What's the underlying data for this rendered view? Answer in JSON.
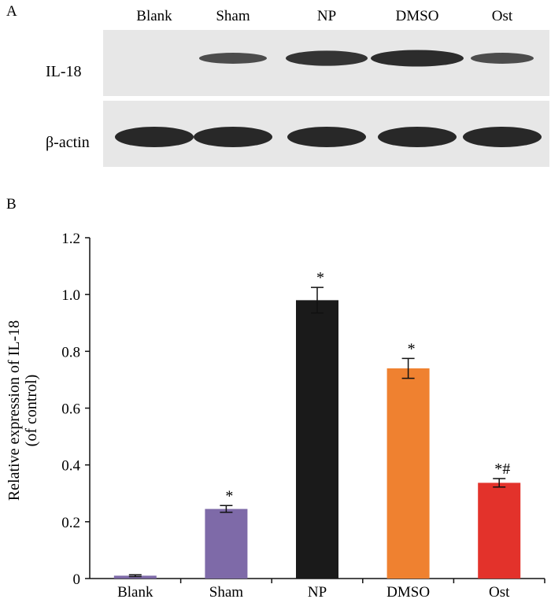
{
  "panel_a": {
    "label": "A",
    "lanes": [
      "Blank",
      "Sham",
      "NP",
      "DMSO",
      "Ost"
    ],
    "rows": [
      {
        "label": "IL-18",
        "intensity": [
          0.0,
          0.55,
          0.85,
          0.95,
          0.55
        ]
      },
      {
        "label": "β-actin",
        "intensity": [
          1.0,
          1.0,
          1.0,
          1.0,
          1.0
        ]
      }
    ]
  },
  "panel_b": {
    "label": "B"
  },
  "chart_data": {
    "type": "bar",
    "categories": [
      "Blank",
      "Sham",
      "NP",
      "DMSO",
      "Ost"
    ],
    "values": [
      0.01,
      0.245,
      0.98,
      0.74,
      0.337
    ],
    "errors": [
      0.003,
      0.012,
      0.045,
      0.035,
      0.015
    ],
    "annotations": [
      "",
      "*",
      "*",
      "*",
      "*#"
    ],
    "colors": [
      "#7e6aa8",
      "#7e6aa8",
      "#1a1a1a",
      "#ef8130",
      "#e3322b"
    ],
    "ylabel": "Relative expression of IL-18",
    "ylabel2": "(of control)",
    "ylim": [
      0,
      1.2
    ],
    "yticks": [
      "0",
      "0.2",
      "0.4",
      "0.6",
      "0.8",
      "1.0",
      "1.2"
    ],
    "grid": false
  }
}
